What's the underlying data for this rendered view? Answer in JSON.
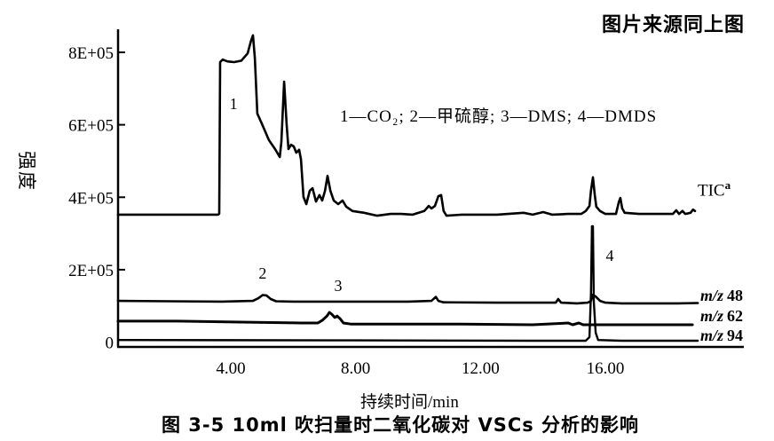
{
  "page": {
    "background": "#ffffff",
    "ink": "#000000"
  },
  "source_note": "图片来源同上图",
  "caption": "图 3-5  10ml 吹扫量时二氧化碳对 VSCs 分析的影响",
  "legend": "1—CO₂; 2—甲硫醇; 3—DMS; 4—DMDS",
  "trace_labels": {
    "tic": "TIC",
    "tic_sup": "a",
    "mz_prefix": "m/z",
    "mz48": "48",
    "mz62": "62",
    "mz94": "94"
  },
  "chart_data": {
    "type": "line",
    "title": "",
    "xlabel": "持续时间/min",
    "ylabel": "强度",
    "xlim": [
      0.4,
      21.0
    ],
    "ylim": [
      0,
      8.8
    ],
    "grid": false,
    "legend_position": "top-center-inside",
    "x_ticks": [
      {
        "value": 4,
        "label": "4.00"
      },
      {
        "value": 8,
        "label": "8.00"
      },
      {
        "value": 12,
        "label": "12.00"
      },
      {
        "value": 16,
        "label": "16.00"
      }
    ],
    "y_ticks": [
      {
        "value": 0,
        "label": "0",
        "tick": false
      },
      {
        "value": 2,
        "label": "2E+05",
        "tick": true
      },
      {
        "value": 4,
        "label": "4E+05",
        "tick": true
      },
      {
        "value": 6,
        "label": "6E+05",
        "tick": true
      },
      {
        "value": 8,
        "label": "8E+05",
        "tick": true
      }
    ],
    "y_unit": "counts (E+05 = 1e5)",
    "peak_labels": [
      {
        "text": "1",
        "t": 4.09,
        "intensity": 6.58,
        "compound": "CO₂"
      },
      {
        "text": "2",
        "t": 5.02,
        "intensity": 1.9,
        "compound": "甲硫醇"
      },
      {
        "text": "3",
        "t": 7.44,
        "intensity": 1.56,
        "compound": "DMS"
      },
      {
        "text": "4",
        "t": 16.14,
        "intensity": 2.39,
        "compound": "DMDS"
      }
    ],
    "series": [
      {
        "name": "TIC",
        "units": "intensity_1e5_vs_min",
        "points": [
          [
            0.39,
            3.52
          ],
          [
            3.6,
            3.52
          ],
          [
            3.63,
            3.55
          ],
          [
            3.66,
            7.73
          ],
          [
            3.74,
            7.8
          ],
          [
            3.89,
            7.75
          ],
          [
            4.11,
            7.73
          ],
          [
            4.34,
            7.77
          ],
          [
            4.54,
            7.97
          ],
          [
            4.65,
            8.32
          ],
          [
            4.71,
            8.47
          ],
          [
            4.77,
            7.85
          ],
          [
            4.85,
            6.31
          ],
          [
            5.0,
            6.02
          ],
          [
            5.22,
            5.58
          ],
          [
            5.42,
            5.33
          ],
          [
            5.57,
            5.11
          ],
          [
            5.62,
            5.53
          ],
          [
            5.71,
            7.19
          ],
          [
            5.79,
            6.02
          ],
          [
            5.85,
            5.33
          ],
          [
            5.93,
            5.45
          ],
          [
            6.02,
            5.4
          ],
          [
            6.1,
            5.23
          ],
          [
            6.19,
            5.31
          ],
          [
            6.25,
            5.04
          ],
          [
            6.33,
            4.01
          ],
          [
            6.42,
            3.81
          ],
          [
            6.53,
            4.18
          ],
          [
            6.62,
            4.25
          ],
          [
            6.73,
            3.88
          ],
          [
            6.84,
            4.06
          ],
          [
            6.93,
            3.91
          ],
          [
            7.02,
            4.18
          ],
          [
            7.1,
            4.59
          ],
          [
            7.19,
            4.18
          ],
          [
            7.3,
            3.91
          ],
          [
            7.44,
            3.81
          ],
          [
            7.58,
            3.91
          ],
          [
            7.7,
            3.74
          ],
          [
            7.9,
            3.62
          ],
          [
            8.27,
            3.57
          ],
          [
            8.69,
            3.49
          ],
          [
            9.12,
            3.54
          ],
          [
            9.46,
            3.54
          ],
          [
            9.83,
            3.52
          ],
          [
            10.2,
            3.62
          ],
          [
            10.34,
            3.76
          ],
          [
            10.43,
            3.69
          ],
          [
            10.54,
            3.76
          ],
          [
            10.65,
            4.03
          ],
          [
            10.74,
            4.06
          ],
          [
            10.82,
            3.62
          ],
          [
            10.91,
            3.49
          ],
          [
            11.39,
            3.52
          ],
          [
            12.53,
            3.52
          ],
          [
            13.38,
            3.57
          ],
          [
            13.67,
            3.52
          ],
          [
            14.01,
            3.59
          ],
          [
            14.29,
            3.52
          ],
          [
            14.8,
            3.54
          ],
          [
            15.23,
            3.54
          ],
          [
            15.37,
            3.62
          ],
          [
            15.49,
            3.76
          ],
          [
            15.54,
            4.18
          ],
          [
            15.6,
            4.55
          ],
          [
            15.66,
            4.06
          ],
          [
            15.71,
            3.74
          ],
          [
            15.83,
            3.62
          ],
          [
            16.0,
            3.54
          ],
          [
            16.34,
            3.54
          ],
          [
            16.43,
            3.86
          ],
          [
            16.48,
            3.98
          ],
          [
            16.54,
            3.69
          ],
          [
            16.62,
            3.57
          ],
          [
            17.08,
            3.54
          ],
          [
            17.79,
            3.54
          ],
          [
            18.16,
            3.54
          ],
          [
            18.27,
            3.64
          ],
          [
            18.36,
            3.54
          ],
          [
            18.47,
            3.62
          ],
          [
            18.56,
            3.54
          ],
          [
            18.73,
            3.57
          ],
          [
            18.81,
            3.66
          ],
          [
            18.87,
            3.62
          ]
        ]
      },
      {
        "name": "m/z 48",
        "units": "intensity_1e5_vs_min",
        "points": [
          [
            0.39,
            1.14
          ],
          [
            2.0,
            1.13
          ],
          [
            3.72,
            1.12
          ],
          [
            4.71,
            1.14
          ],
          [
            4.88,
            1.21
          ],
          [
            5.02,
            1.3
          ],
          [
            5.14,
            1.29
          ],
          [
            5.28,
            1.19
          ],
          [
            5.45,
            1.13
          ],
          [
            5.99,
            1.12
          ],
          [
            7.98,
            1.12
          ],
          [
            9.69,
            1.12
          ],
          [
            10.43,
            1.14
          ],
          [
            10.57,
            1.25
          ],
          [
            10.65,
            1.14
          ],
          [
            10.82,
            1.1
          ],
          [
            12.53,
            1.09
          ],
          [
            13.67,
            1.09
          ],
          [
            14.41,
            1.09
          ],
          [
            14.49,
            1.19
          ],
          [
            14.58,
            1.09
          ],
          [
            15.09,
            1.07
          ],
          [
            15.43,
            1.09
          ],
          [
            15.54,
            1.14
          ],
          [
            15.6,
            1.31
          ],
          [
            15.69,
            1.26
          ],
          [
            15.83,
            1.14
          ],
          [
            16.0,
            1.09
          ],
          [
            16.51,
            1.07
          ],
          [
            17.65,
            1.07
          ],
          [
            18.3,
            1.07
          ],
          [
            18.96,
            1.08
          ]
        ]
      },
      {
        "name": "m/z 62",
        "units": "intensity_1e5_vs_min",
        "points": [
          [
            0.39,
            0.58
          ],
          [
            2.3,
            0.58
          ],
          [
            4.57,
            0.55
          ],
          [
            6.28,
            0.53
          ],
          [
            6.79,
            0.53
          ],
          [
            6.93,
            0.6
          ],
          [
            7.08,
            0.72
          ],
          [
            7.16,
            0.82
          ],
          [
            7.24,
            0.77
          ],
          [
            7.33,
            0.68
          ],
          [
            7.41,
            0.72
          ],
          [
            7.5,
            0.65
          ],
          [
            7.61,
            0.53
          ],
          [
            7.84,
            0.5
          ],
          [
            9.4,
            0.5
          ],
          [
            11.39,
            0.5
          ],
          [
            13.67,
            0.48
          ],
          [
            14.81,
            0.53
          ],
          [
            14.95,
            0.48
          ],
          [
            15.15,
            0.53
          ],
          [
            15.29,
            0.48
          ],
          [
            16.51,
            0.48
          ],
          [
            18.22,
            0.48
          ],
          [
            18.79,
            0.48
          ]
        ]
      },
      {
        "name": "m/z 94",
        "units": "intensity_1e5_vs_min",
        "points": [
          [
            0.39,
            0.06
          ],
          [
            7.98,
            0.05
          ],
          [
            13.67,
            0.04
          ],
          [
            15.37,
            0.04
          ],
          [
            15.49,
            0.14
          ],
          [
            15.54,
            1.36
          ],
          [
            15.57,
            3.2
          ],
          [
            15.6,
            3.2
          ],
          [
            15.63,
            1.12
          ],
          [
            15.69,
            0.26
          ],
          [
            15.77,
            0.06
          ],
          [
            16.51,
            0.04
          ],
          [
            18.1,
            0.04
          ],
          [
            18.96,
            0.04
          ]
        ]
      }
    ]
  }
}
